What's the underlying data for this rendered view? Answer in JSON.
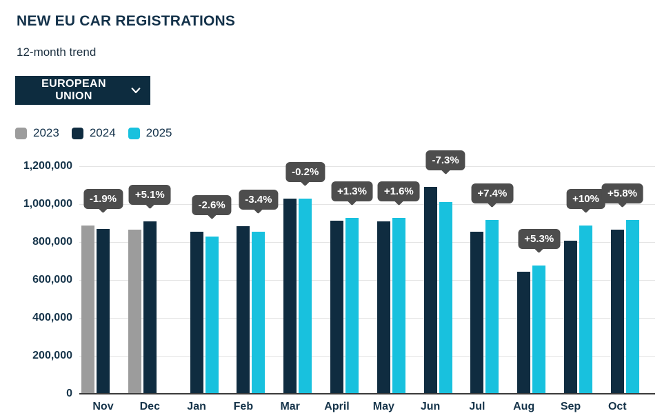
{
  "header": {
    "title": "NEW EU CAR REGISTRATIONS",
    "subtitle": "12-month trend",
    "region_selector": {
      "label": "EUROPEAN UNION"
    }
  },
  "legend": [
    {
      "label": "2023",
      "color": "#9c9c9c"
    },
    {
      "label": "2024",
      "color": "#0f2c40"
    },
    {
      "label": "2025",
      "color": "#18c1de"
    }
  ],
  "colors": {
    "navy": "#0f2c40",
    "cyan": "#18c1de",
    "gray": "#9c9c9c",
    "tooltip_bg": "#4d4d4d",
    "text_dark": "#16344a",
    "gridline": "#e4e4e4",
    "axis_line": "#3a3a3a",
    "dropdown_bg": "#0d2c3f"
  },
  "chart_data": {
    "type": "bar",
    "title": "NEW EU CAR REGISTRATIONS",
    "subtitle": "12-month trend",
    "categories": [
      "Nov",
      "Dec",
      "Jan",
      "Feb",
      "Mar",
      "April",
      "May",
      "Jun",
      "Jul",
      "Aug",
      "Sep",
      "Oct"
    ],
    "series": [
      {
        "name": "2023",
        "color": "#9c9c9c",
        "values": [
          886000,
          867000,
          null,
          null,
          null,
          null,
          null,
          null,
          null,
          null,
          null,
          null
        ]
      },
      {
        "name": "2024",
        "color": "#0f2c40",
        "values": [
          869000,
          911000,
          853000,
          884000,
          1031000,
          914000,
          911000,
          1090000,
          853000,
          642000,
          806000,
          865000
        ]
      },
      {
        "name": "2025",
        "color": "#18c1de",
        "values": [
          null,
          null,
          831000,
          854000,
          1029000,
          926000,
          926000,
          1010000,
          916000,
          676000,
          887000,
          915000
        ]
      }
    ],
    "annotations": [
      {
        "category": "Nov",
        "text": "-1.9%",
        "anchor_series": "2024"
      },
      {
        "category": "Dec",
        "text": "+5.1%",
        "anchor_series": "2024"
      },
      {
        "category": "Jan",
        "text": "-2.6%",
        "anchor_series": "2025"
      },
      {
        "category": "Feb",
        "text": "-3.4%",
        "anchor_series": "2025"
      },
      {
        "category": "Mar",
        "text": "-0.2%",
        "anchor_series": "2025"
      },
      {
        "category": "April",
        "text": "+1.3%",
        "anchor_series": "2025"
      },
      {
        "category": "May",
        "text": "+1.6%",
        "anchor_series": "2025"
      },
      {
        "category": "Jun",
        "text": "-7.3%",
        "anchor_series": "2025"
      },
      {
        "category": "Jul",
        "text": "+7.4%",
        "anchor_series": "2025"
      },
      {
        "category": "Aug",
        "text": "+5.3%",
        "anchor_series": "2025"
      },
      {
        "category": "Sep",
        "text": "+10%",
        "anchor_series": "2025"
      },
      {
        "category": "Oct",
        "text": "+5.8%",
        "anchor_series": "2025"
      }
    ],
    "ylim": [
      0,
      1200000
    ],
    "ytick_step": 200000,
    "ytick_labels": [
      "0",
      "200,000",
      "400,000",
      "600,000",
      "800,000",
      "1,000,000",
      "1,200,000"
    ],
    "grid": true,
    "legend_position": "top-left",
    "legend_entries": [
      "2023",
      "2024",
      "2025"
    ]
  }
}
